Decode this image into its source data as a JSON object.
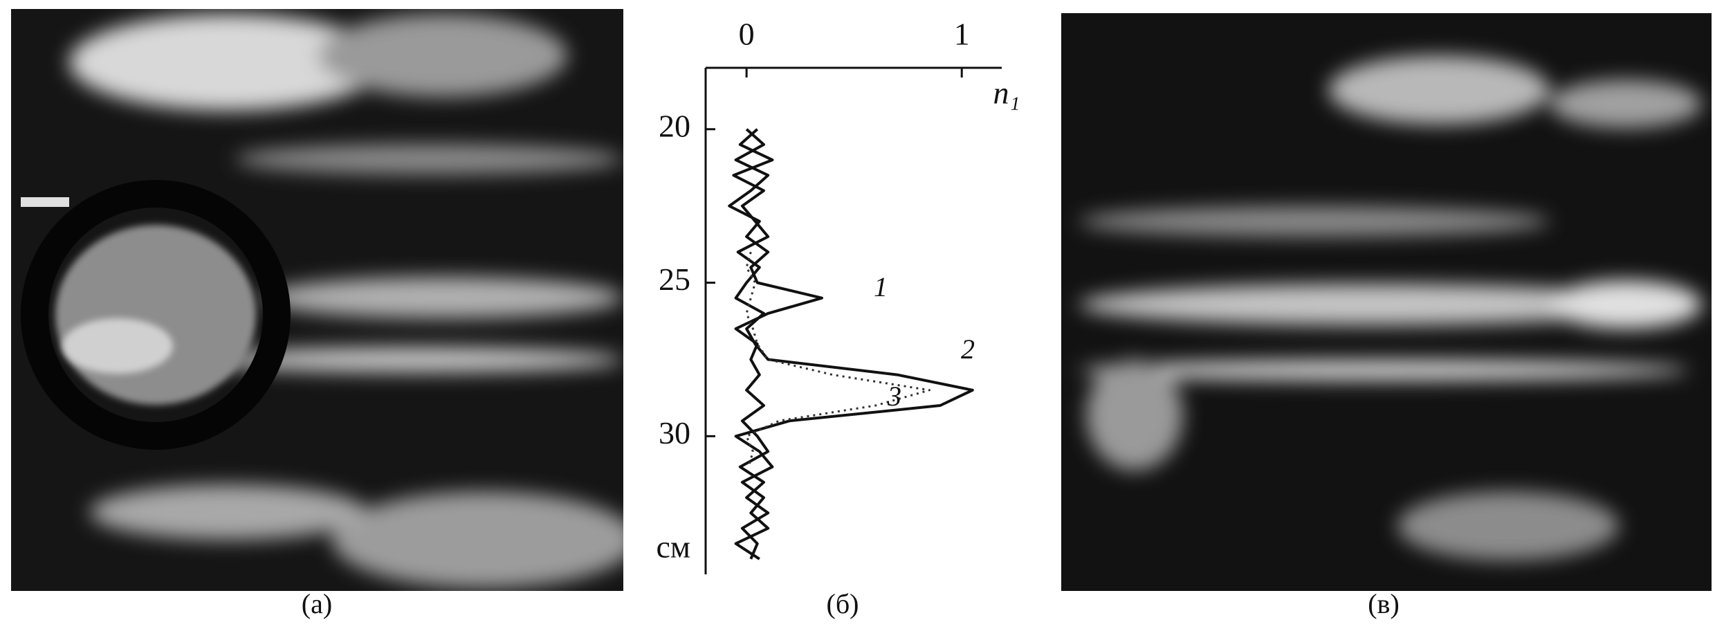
{
  "panel_labels": [
    "(а)",
    "(б)",
    "(в)"
  ],
  "chart_data": {
    "type": "line",
    "x_label": "n₁",
    "y_label": "см",
    "xlim": [
      -0.19,
      1.25
    ],
    "xticks": [
      0,
      1
    ],
    "ylim": [
      18,
      34.5
    ],
    "yticks": [
      20,
      25,
      30
    ],
    "x": [
      20,
      20.5,
      21,
      21.5,
      22,
      22.5,
      23,
      23.5,
      24,
      24.5,
      25,
      25.5,
      26,
      26.5,
      27,
      27.5,
      28,
      28.5,
      29,
      29.5,
      30,
      30.5,
      31,
      31.5,
      32,
      32.5,
      33,
      33.5,
      34
    ],
    "series": [
      {
        "name": "1",
        "color": "#111111",
        "dash": false,
        "values": [
          0.0,
          0.08,
          -0.05,
          0.1,
          0.02,
          -0.08,
          0.06,
          0.0,
          0.1,
          0.02,
          0.05,
          0.35,
          0.1,
          -0.05,
          0.05,
          0.02,
          0.06,
          0.0,
          0.08,
          -0.02,
          0.05,
          0.1,
          -0.03,
          0.08,
          0.0,
          0.1,
          -0.02,
          0.05,
          0.02
        ]
      },
      {
        "name": "2",
        "color": "#111111",
        "dash": false,
        "values": [
          0.05,
          -0.03,
          0.12,
          -0.06,
          0.08,
          -0.02,
          0.04,
          0.1,
          -0.04,
          0.06,
          0.0,
          -0.05,
          0.08,
          0.0,
          0.04,
          0.1,
          0.7,
          1.05,
          0.9,
          0.2,
          -0.05,
          0.06,
          0.12,
          -0.02,
          0.08,
          0.02,
          0.1,
          -0.05,
          0.06
        ]
      },
      {
        "name": "3",
        "color": "#333333",
        "dash": true,
        "values": [
          null,
          null,
          null,
          null,
          null,
          null,
          null,
          null,
          0.02,
          0.0,
          0.04,
          0.02,
          0.0,
          0.03,
          0.05,
          0.1,
          0.4,
          0.85,
          0.6,
          0.15,
          0.0,
          0.03,
          0.01,
          null,
          null,
          null,
          null,
          null,
          null
        ]
      }
    ]
  }
}
